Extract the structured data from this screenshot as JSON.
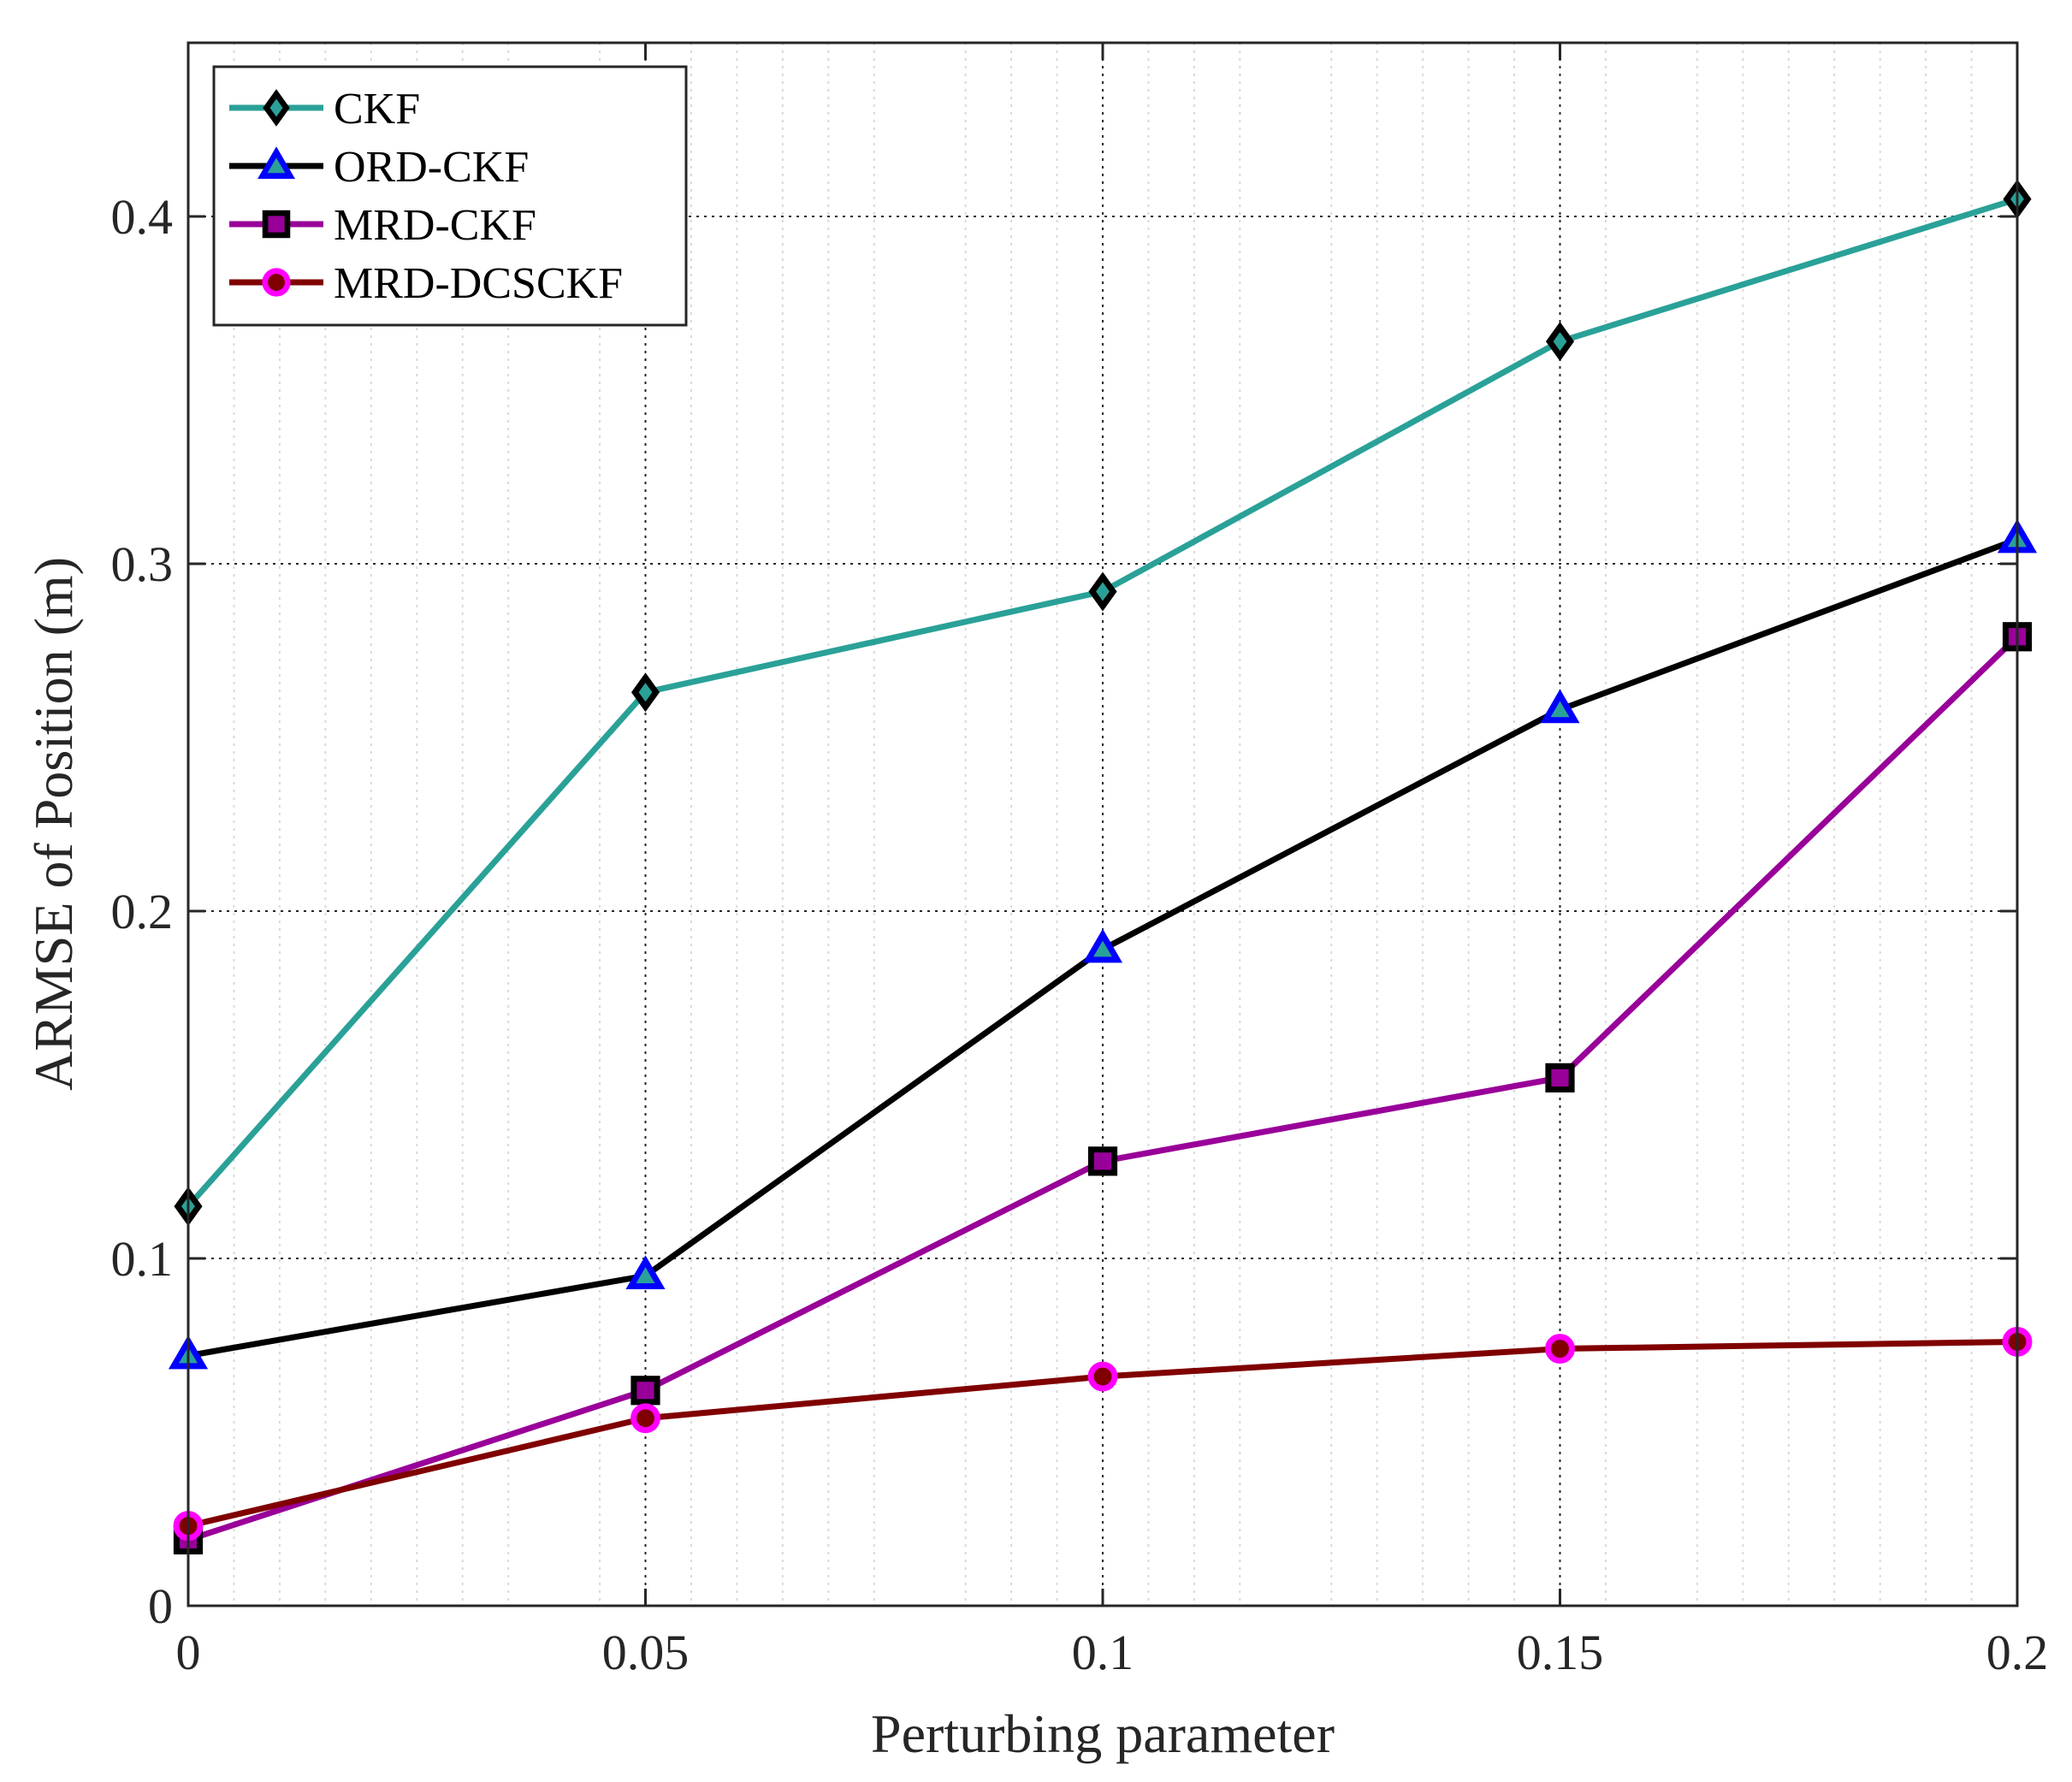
{
  "chart_data": {
    "type": "line",
    "title": "",
    "xlabel": "Perturbing parameter",
    "ylabel": "ARMSE of Position (m)",
    "x": [
      0,
      0.05,
      0.1,
      0.15,
      0.2
    ],
    "xlim": [
      0,
      0.2
    ],
    "ylim": [
      0,
      0.45
    ],
    "xticks": [
      "0",
      "0.05",
      "0.1",
      "0.15",
      "0.2"
    ],
    "yticks": [
      "0",
      "0.1",
      "0.2",
      "0.3",
      "0.4"
    ],
    "grid": true,
    "minor_grid_x": true,
    "legend_position": "top-left",
    "series": [
      {
        "name": "CKF",
        "color": "#2aa198",
        "marker": "diamond",
        "marker_edge": "#000000",
        "marker_face": "#2aa198",
        "values": [
          0.115,
          0.263,
          0.292,
          0.364,
          0.405
        ]
      },
      {
        "name": "ORD-CKF",
        "color": "#000000",
        "marker": "triangle",
        "marker_edge": "#0000ff",
        "marker_face": "#2aa198",
        "values": [
          0.072,
          0.095,
          0.189,
          0.258,
          0.307
        ]
      },
      {
        "name": "MRD-CKF",
        "color": "#990099",
        "marker": "square",
        "marker_edge": "#000000",
        "marker_face": "#990099",
        "values": [
          0.019,
          0.062,
          0.128,
          0.152,
          0.279
        ]
      },
      {
        "name": "MRD-DCSCKF",
        "color": "#800000",
        "marker": "circle",
        "marker_edge": "#ff00ff",
        "marker_face": "#800000",
        "values": [
          0.023,
          0.054,
          0.066,
          0.074,
          0.076
        ]
      }
    ]
  }
}
